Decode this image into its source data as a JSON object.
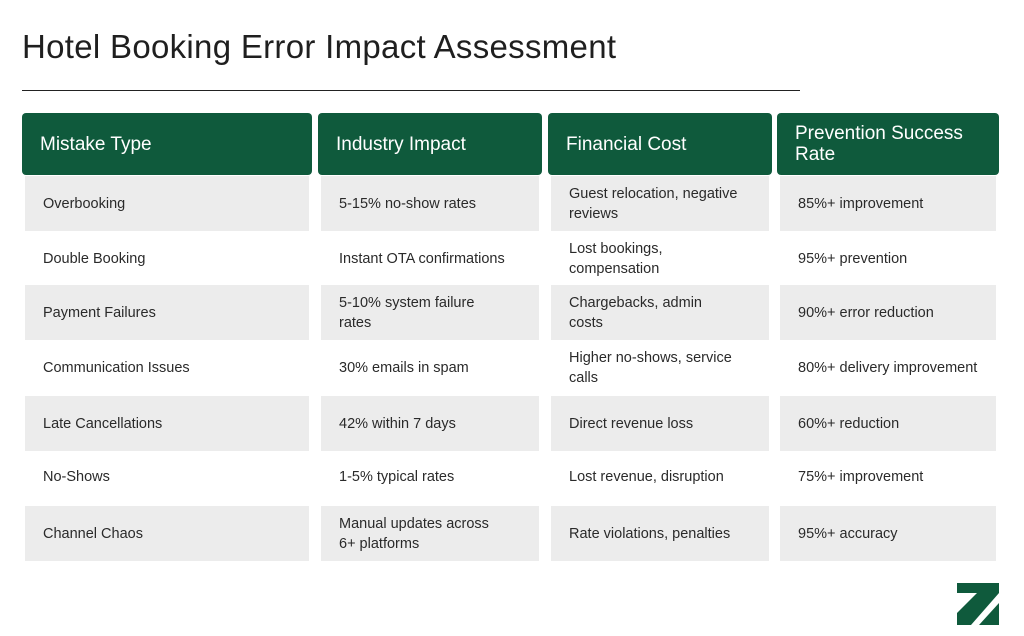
{
  "title": "Hotel Booking Error Impact Assessment",
  "headers": [
    "Mistake Type",
    "Industry Impact",
    "Financial Cost",
    "Prevention Success Rate"
  ],
  "rows": [
    [
      "Overbooking",
      "5-15% no-show rates",
      "Guest relocation, negative reviews",
      "85%+ improvement"
    ],
    [
      "Double Booking",
      "Instant OTA confirmations",
      "Lost bookings, compensation",
      "95%+ prevention"
    ],
    [
      "Payment Failures",
      "5-10% system failure rates",
      "Chargebacks, admin costs",
      "90%+ error reduction"
    ],
    [
      "Communication Issues",
      "30% emails in spam",
      "Higher no-shows, service calls",
      "80%+ delivery improvement"
    ],
    [
      "Late Cancellations",
      "42% within 7 days",
      "Direct revenue loss",
      "60%+ reduction"
    ],
    [
      "No-Shows",
      "1-5% typical rates",
      "Lost revenue, disruption",
      "75%+ improvement"
    ],
    [
      "Channel Chaos",
      "Manual updates across 6+ platforms",
      "Rate violations, penalties",
      "95%+ accuracy"
    ]
  ],
  "colors": {
    "header_bg": "#0f5a3c",
    "row_shade": "#ececec",
    "logo_green": "#0f5a3c"
  },
  "logo_icon": "brand-logo-icon"
}
